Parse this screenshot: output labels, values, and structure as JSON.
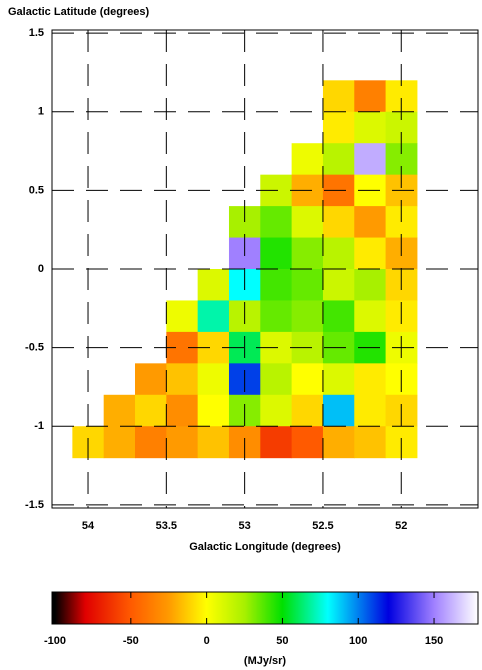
{
  "chart_data": {
    "type": "heatmap",
    "title": "Galactic Latitude (degrees)",
    "xlabel": "Galactic Longitude (degrees)",
    "colorbar_label": "(MJy/sr)",
    "x": [
      54.0,
      53.8,
      53.6,
      53.4,
      53.2,
      53.0,
      52.8,
      52.6,
      52.4,
      52.2,
      52.0
    ],
    "y": [
      1.1,
      0.9,
      0.7,
      0.5,
      0.3,
      0.1,
      -0.1,
      -0.3,
      -0.5,
      -0.7,
      -0.9,
      -1.1
    ],
    "z": [
      [
        null,
        null,
        null,
        null,
        null,
        null,
        null,
        null,
        -10,
        -35,
        -5
      ],
      [
        null,
        null,
        null,
        null,
        null,
        null,
        null,
        null,
        -5,
        10,
        15
      ],
      [
        null,
        null,
        null,
        null,
        null,
        null,
        null,
        5,
        20,
        160,
        30
      ],
      [
        null,
        null,
        null,
        null,
        null,
        null,
        15,
        -20,
        -40,
        0,
        -15
      ],
      [
        null,
        null,
        null,
        null,
        null,
        25,
        35,
        10,
        -10,
        -25,
        -5
      ],
      [
        null,
        null,
        null,
        null,
        null,
        150,
        45,
        30,
        20,
        -5,
        -20
      ],
      [
        null,
        null,
        null,
        null,
        10,
        80,
        40,
        35,
        15,
        25,
        -10
      ],
      [
        null,
        null,
        null,
        5,
        70,
        20,
        35,
        30,
        40,
        10,
        -5
      ],
      [
        null,
        null,
        null,
        -40,
        -10,
        60,
        10,
        20,
        35,
        45,
        5
      ],
      [
        null,
        null,
        -25,
        -15,
        5,
        110,
        20,
        0,
        10,
        -5,
        0
      ],
      [
        null,
        -20,
        -10,
        -30,
        0,
        30,
        10,
        -10,
        90,
        -5,
        -10
      ],
      [
        -10,
        -20,
        -35,
        -25,
        -15,
        -30,
        -60,
        -50,
        -20,
        -15,
        -5
      ]
    ],
    "xlim": [
      54.23,
      51.51
    ],
    "xticks": [
      54,
      53.5,
      53,
      52.5,
      52
    ],
    "ylim": [
      -1.52,
      1.52
    ],
    "yticks": [
      1.5,
      1,
      0.5,
      0,
      -0.5,
      -1,
      -1.5
    ],
    "zlim": [
      -102,
      179
    ],
    "zticks": [
      -100,
      -50,
      0,
      50,
      100,
      150
    ],
    "grid": true,
    "colorscale": [
      [
        -100,
        "#000000"
      ],
      [
        -80,
        "#e00000"
      ],
      [
        -50,
        "#ff5a00"
      ],
      [
        -25,
        "#ff9a00"
      ],
      [
        0,
        "#ffff00"
      ],
      [
        25,
        "#a8f000"
      ],
      [
        50,
        "#00e000"
      ],
      [
        80,
        "#00ffff"
      ],
      [
        120,
        "#0000e0"
      ],
      [
        150,
        "#a080ff"
      ],
      [
        179,
        "#ffffff"
      ]
    ]
  }
}
